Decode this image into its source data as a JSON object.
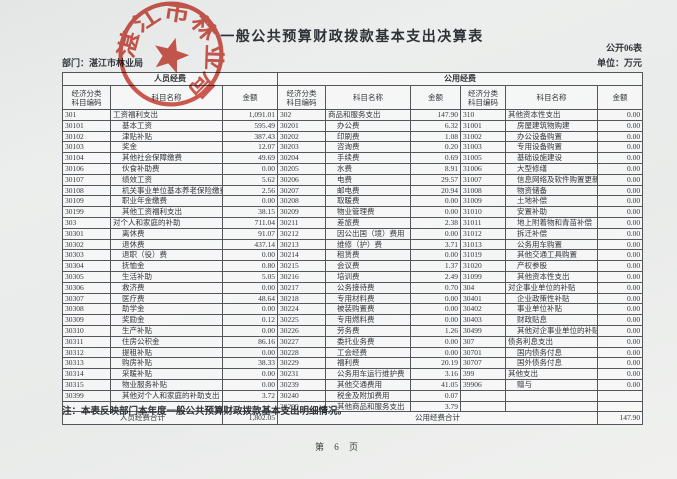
{
  "page": {
    "title": "一般公共预算财政拨款基本支出决算表",
    "form_number": "公开06表",
    "unit": "单位：万元",
    "department": "部门：湛江市林业局",
    "note": "注：本表反映部门本年度一般公共预算财政拨款基本支出明细情况。",
    "page_number": "第 6 页"
  },
  "stamp": {
    "text": "湛江市林业局",
    "color": "#c9372a"
  },
  "table": {
    "group_headers": {
      "personnel": "人员经费",
      "public": "公用经费"
    },
    "column_headers": {
      "code": "经济分类\n科目编码",
      "name": "科目名称",
      "amount": "金额"
    },
    "rows": [
      [
        [
          "301",
          "工资福利支出",
          "1,091.01"
        ],
        [
          "302",
          "商品和服务支出",
          "147.90"
        ],
        [
          "310",
          "其他资本性支出",
          "0.00"
        ]
      ],
      [
        [
          "30101",
          "基本工资",
          "595.49"
        ],
        [
          "30201",
          "办公费",
          "6.32"
        ],
        [
          "31001",
          "房屋建筑物购建",
          "0.00"
        ]
      ],
      [
        [
          "30102",
          "津贴补贴",
          "387.43"
        ],
        [
          "30202",
          "印刷费",
          "1.08"
        ],
        [
          "31002",
          "办公设备购置",
          "0.00"
        ]
      ],
      [
        [
          "30103",
          "奖金",
          "12.07"
        ],
        [
          "30203",
          "咨询费",
          "0.20"
        ],
        [
          "31003",
          "专用设备购置",
          "0.00"
        ]
      ],
      [
        [
          "30104",
          "其他社会保障缴费",
          "49.69"
        ],
        [
          "30204",
          "手续费",
          "0.69"
        ],
        [
          "31005",
          "基础设施建设",
          "0.00"
        ]
      ],
      [
        [
          "30106",
          "伙食补助费",
          "0.00"
        ],
        [
          "30205",
          "水费",
          "8.91"
        ],
        [
          "31006",
          "大型修缮",
          "0.00"
        ]
      ],
      [
        [
          "30107",
          "绩效工资",
          "5.62"
        ],
        [
          "30206",
          "电费",
          "29.57"
        ],
        [
          "31007",
          "信息网络及软件购置更新",
          "0.00"
        ]
      ],
      [
        [
          "30108",
          "机关事业单位基本养老保险缴费",
          "2.56"
        ],
        [
          "30207",
          "邮电费",
          "20.94"
        ],
        [
          "31008",
          "物资储备",
          "0.00"
        ]
      ],
      [
        [
          "30109",
          "职业年金缴费",
          "0.00"
        ],
        [
          "30208",
          "取暖费",
          "0.00"
        ],
        [
          "31009",
          "土地补偿",
          "0.00"
        ]
      ],
      [
        [
          "30199",
          "其他工资福利支出",
          "38.15"
        ],
        [
          "30209",
          "物业管理费",
          "0.00"
        ],
        [
          "31010",
          "安置补助",
          "0.00"
        ]
      ],
      [
        [
          "303",
          "对个人和家庭的补助",
          "711.04"
        ],
        [
          "30211",
          "差旅费",
          "2.38"
        ],
        [
          "31011",
          "地上附着物和青苗补偿",
          "0.00"
        ]
      ],
      [
        [
          "30301",
          "离休费",
          "91.07"
        ],
        [
          "30212",
          "因公出国（境）费用",
          "0.00"
        ],
        [
          "31012",
          "拆迁补偿",
          "0.00"
        ]
      ],
      [
        [
          "30302",
          "退休费",
          "437.14"
        ],
        [
          "30213",
          "维修（护）费",
          "3.71"
        ],
        [
          "31013",
          "公务用车购置",
          "0.00"
        ]
      ],
      [
        [
          "30303",
          "退职（役）费",
          "0.00"
        ],
        [
          "30214",
          "租赁费",
          "0.00"
        ],
        [
          "31019",
          "其他交通工具购置",
          "0.00"
        ]
      ],
      [
        [
          "30304",
          "抚恤金",
          "0.80"
        ],
        [
          "30215",
          "会议费",
          "1.37"
        ],
        [
          "31020",
          "产权参股",
          "0.00"
        ]
      ],
      [
        [
          "30305",
          "生活补助",
          "5.05"
        ],
        [
          "30216",
          "培训费",
          "2.49"
        ],
        [
          "31099",
          "其他资本性支出",
          "0.00"
        ]
      ],
      [
        [
          "30306",
          "救济费",
          "0.00"
        ],
        [
          "30217",
          "公务接待费",
          "0.70"
        ],
        [
          "304",
          "对企事业单位的补贴",
          "0.00"
        ]
      ],
      [
        [
          "30307",
          "医疗费",
          "48.64"
        ],
        [
          "30218",
          "专用材料费",
          "0.00"
        ],
        [
          "30401",
          "企业政策性补贴",
          "0.00"
        ]
      ],
      [
        [
          "30308",
          "助学金",
          "0.00"
        ],
        [
          "30224",
          "被装购置费",
          "0.00"
        ],
        [
          "30402",
          "事业单位补贴",
          "0.00"
        ]
      ],
      [
        [
          "30309",
          "奖励金",
          "0.12"
        ],
        [
          "30225",
          "专用燃料费",
          "0.00"
        ],
        [
          "30403",
          "财政贴息",
          "0.00"
        ]
      ],
      [
        [
          "30310",
          "生产补贴",
          "0.00"
        ],
        [
          "30226",
          "劳务费",
          "1.26"
        ],
        [
          "30499",
          "其他对企事业单位的补贴",
          "0.00"
        ]
      ],
      [
        [
          "30311",
          "住房公积金",
          "86.16"
        ],
        [
          "30227",
          "委托业务费",
          "0.00"
        ],
        [
          "307",
          "债务利息支出",
          "0.00"
        ]
      ],
      [
        [
          "30312",
          "提租补贴",
          "0.00"
        ],
        [
          "30228",
          "工会经费",
          "0.00"
        ],
        [
          "30701",
          "国内债务付息",
          "0.00"
        ]
      ],
      [
        [
          "30313",
          "购房补贴",
          "38.33"
        ],
        [
          "30229",
          "福利费",
          "20.19"
        ],
        [
          "30707",
          "国外债务付息",
          "0.00"
        ]
      ],
      [
        [
          "30314",
          "采暖补贴",
          "0.00"
        ],
        [
          "30231",
          "公务用车运行维护费",
          "3.16"
        ],
        [
          "399",
          "其他支出",
          "0.00"
        ]
      ],
      [
        [
          "30315",
          "物业服务补贴",
          "0.00"
        ],
        [
          "30239",
          "其他交通费用",
          "41.05"
        ],
        [
          "39906",
          "赠与",
          "0.00"
        ]
      ],
      [
        [
          "30399",
          "其他对个人和家庭的补助支出",
          "3.72"
        ],
        [
          "30240",
          "税金及附加费用",
          "0.07"
        ],
        [
          "",
          "",
          ""
        ]
      ],
      [
        [
          "",
          "",
          ""
        ],
        [
          "30299",
          "其他商品和服务支出",
          "3.79"
        ],
        [
          "",
          "",
          ""
        ]
      ]
    ],
    "totals": {
      "personnel_label": "人员经费合计",
      "personnel_amount": "1,802.05",
      "public_label": "公用经费合计",
      "public_amount": "147.90"
    }
  }
}
